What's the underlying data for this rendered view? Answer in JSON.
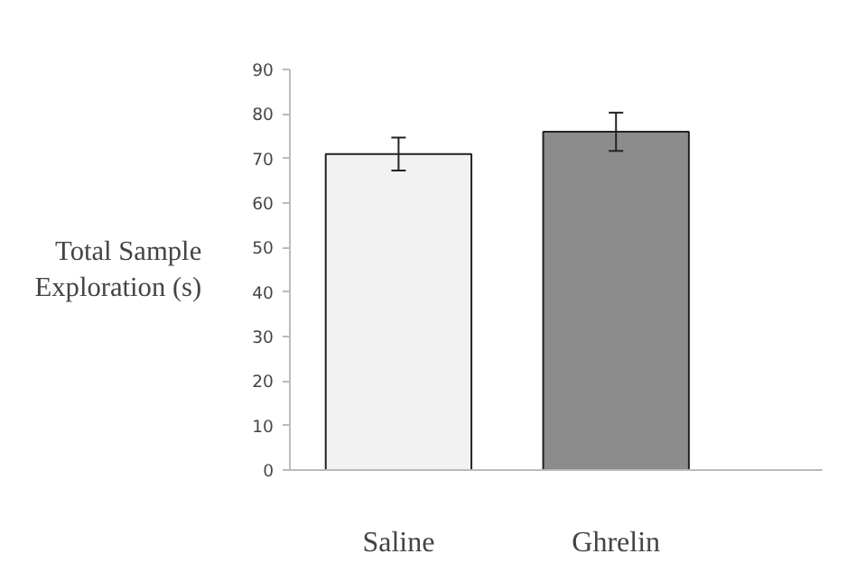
{
  "chart_data": {
    "type": "bar",
    "ylabel": "Total Sample\nExploration (s)",
    "categories": [
      "Saline",
      "Ghrelin"
    ],
    "values": [
      71,
      76
    ],
    "colors": [
      "#f2f2f2",
      "#8c8c8c"
    ],
    "errors": [
      3.7,
      4.3
    ],
    "ylim": [
      0,
      90
    ],
    "yticks": [
      0,
      10,
      20,
      30,
      40,
      50,
      60,
      70,
      80,
      90
    ],
    "grid": false
  }
}
